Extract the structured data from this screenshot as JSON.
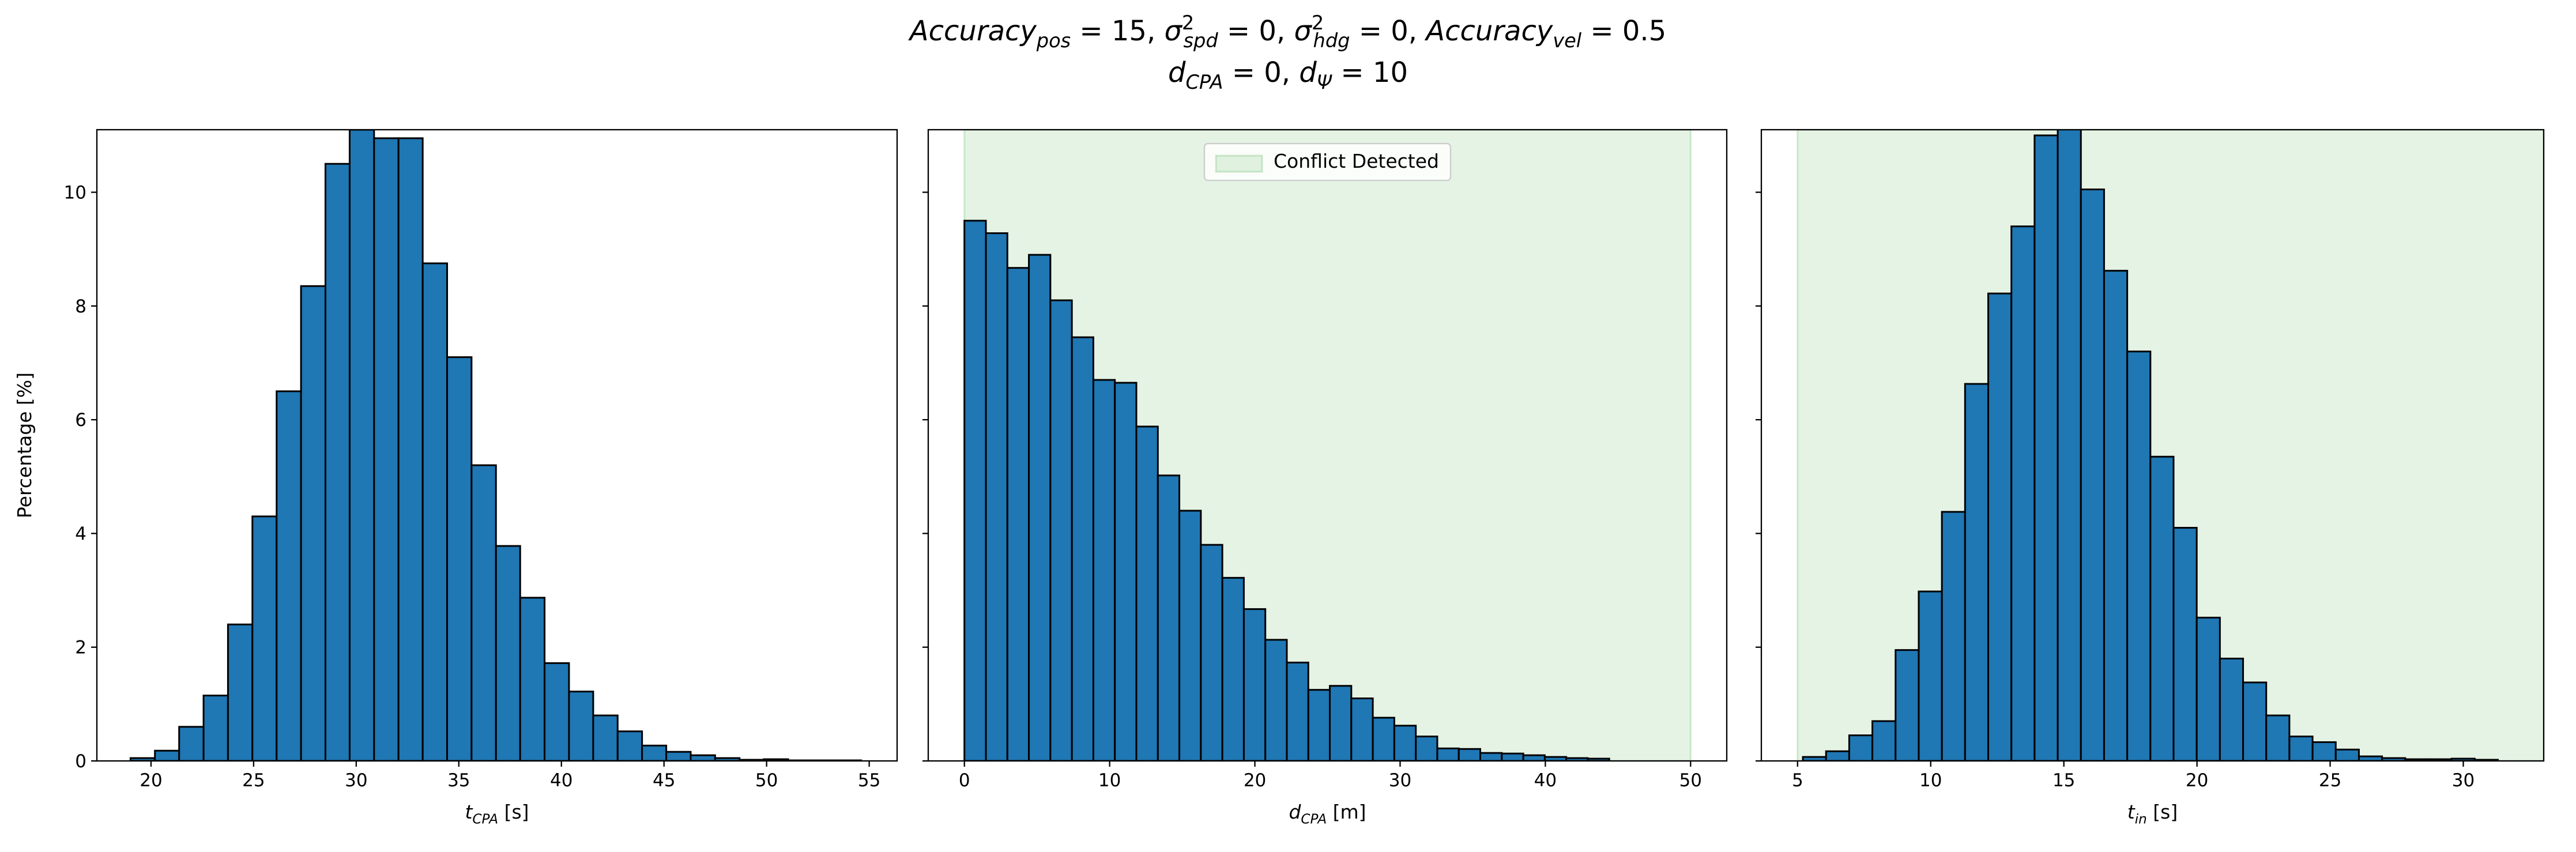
{
  "suptitle": [
    [
      {
        "t": "Accuracy",
        "sub": "pos"
      },
      {
        "t": " = 15, "
      },
      {
        "t": "σ",
        "sup": "2",
        "sub": "spd"
      },
      {
        "t": " = 0, "
      },
      {
        "t": "σ",
        "sup": "2",
        "sub": "hdg"
      },
      {
        "t": " = 0, "
      },
      {
        "t": "Accuracy",
        "sub": "vel"
      },
      {
        "t": " = 0.5"
      }
    ],
    [
      {
        "t": "d",
        "sub": "CPA"
      },
      {
        "t": " = 0, "
      },
      {
        "t": "d",
        "sub": "Ψ"
      },
      {
        "t": " = 10"
      }
    ]
  ],
  "chart_data": [
    {
      "type": "histogram",
      "color": "#1f77b4",
      "edgecolor": "#000000",
      "bins": [
        19.0,
        20.19,
        21.37,
        22.56,
        23.75,
        24.94,
        26.12,
        27.31,
        28.5,
        29.68,
        30.87,
        32.06,
        33.24,
        34.43,
        35.62,
        36.81,
        37.99,
        39.18,
        40.37,
        41.55,
        42.74,
        43.93,
        45.11,
        46.3,
        47.49,
        48.68,
        49.86,
        51.05,
        52.24,
        53.42,
        54.61
      ],
      "values": [
        0.05,
        0.18,
        0.6,
        1.15,
        2.4,
        4.3,
        6.5,
        8.35,
        10.5,
        11.1,
        10.95,
        10.95,
        8.75,
        7.1,
        5.2,
        3.78,
        2.87,
        1.72,
        1.22,
        0.8,
        0.52,
        0.27,
        0.16,
        0.1,
        0.05,
        0.02,
        0.03,
        0.01,
        0.01,
        0.01
      ],
      "xlim": [
        17.36,
        56.36
      ],
      "xticks": [
        20,
        25,
        30,
        35,
        40,
        45,
        50,
        55
      ],
      "ylim": [
        0,
        11.1
      ],
      "yticks": [
        0,
        2,
        4,
        6,
        8,
        10
      ],
      "ytick_labels": true,
      "xlabel": [
        {
          "t": "t",
          "sub": "CPA"
        },
        {
          "t": " [s]"
        }
      ],
      "ylabel": [
        {
          "t": "Percentage [%]"
        }
      ]
    },
    {
      "type": "histogram",
      "color": "#1f77b4",
      "edgecolor": "#000000",
      "bins": [
        0,
        1.48,
        2.96,
        4.44,
        5.92,
        7.4,
        8.88,
        10.36,
        11.84,
        13.32,
        14.8,
        16.28,
        17.76,
        19.24,
        20.72,
        22.2,
        23.68,
        25.16,
        26.64,
        28.12,
        29.6,
        31.08,
        32.56,
        34.04,
        35.52,
        37,
        38.48,
        39.96,
        41.44,
        42.92,
        44.4
      ],
      "values": [
        9.5,
        9.28,
        8.67,
        8.9,
        8.1,
        7.45,
        6.7,
        6.65,
        5.88,
        5.02,
        4.4,
        3.8,
        3.22,
        2.67,
        2.13,
        1.73,
        1.25,
        1.32,
        1.1,
        0.76,
        0.62,
        0.43,
        0.22,
        0.21,
        0.14,
        0.13,
        0.1,
        0.07,
        0.05,
        0.04
      ],
      "xlim": [
        -2.49,
        52.49
      ],
      "xticks": [
        0,
        10,
        20,
        30,
        40,
        50
      ],
      "ylim": [
        0,
        11.1
      ],
      "yticks": [
        0,
        2,
        4,
        6,
        8,
        10
      ],
      "ytick_labels": false,
      "xlabel": [
        {
          "t": "d",
          "sub": "CPA"
        },
        {
          "t": " [m]"
        }
      ],
      "span": {
        "range": [
          0,
          50
        ],
        "color": "#2ca02c",
        "label": "Conflict Detected"
      },
      "legend": "upper center"
    },
    {
      "type": "histogram",
      "color": "#1f77b4",
      "edgecolor": "#000000",
      "bins": [
        5.2,
        6.07,
        6.94,
        7.81,
        8.68,
        9.55,
        10.42,
        11.29,
        12.16,
        13.03,
        13.9,
        14.77,
        15.64,
        16.51,
        17.38,
        18.25,
        19.12,
        19.99,
        20.86,
        21.73,
        22.6,
        23.47,
        24.34,
        25.21,
        26.08,
        26.95,
        27.82,
        28.69,
        29.56,
        30.43,
        31.3
      ],
      "values": [
        0.07,
        0.17,
        0.45,
        0.7,
        1.95,
        2.98,
        4.38,
        6.63,
        8.22,
        9.4,
        11.0,
        11.15,
        10.05,
        8.62,
        7.2,
        5.35,
        4.1,
        2.52,
        1.8,
        1.38,
        0.8,
        0.43,
        0.33,
        0.2,
        0.08,
        0.05,
        0.03,
        0.03,
        0.04,
        0.02
      ],
      "xlim": [
        3.64,
        33.02
      ],
      "xticks": [
        5,
        10,
        15,
        20,
        25,
        30
      ],
      "ylim": [
        0,
        11.1
      ],
      "yticks": [
        0,
        2,
        4,
        6,
        8,
        10
      ],
      "ytick_labels": false,
      "xlabel": [
        {
          "t": "t",
          "sub": "in"
        },
        {
          "t": " [s]"
        }
      ],
      "span": {
        "range": [
          5,
          33.02
        ],
        "color": "#2ca02c"
      }
    }
  ]
}
